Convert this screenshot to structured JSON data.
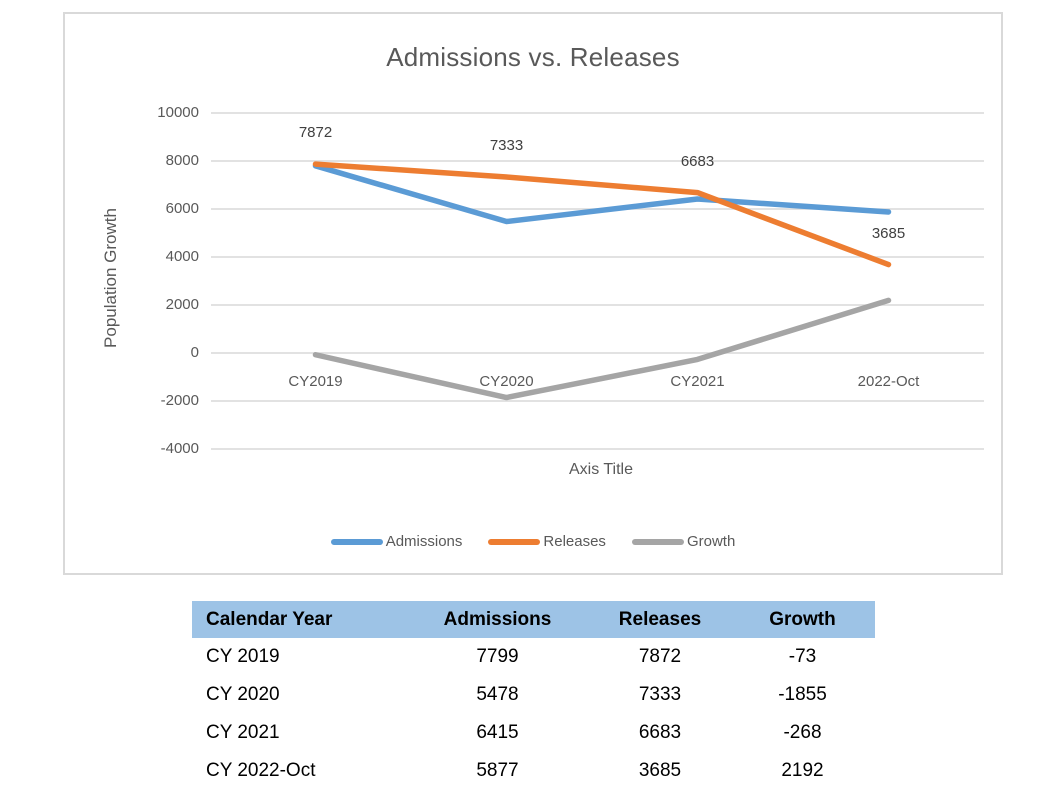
{
  "colors": {
    "admissions": "#5B9BD5",
    "releases": "#ED7D31",
    "growth": "#A5A5A5",
    "gridline": "#D9D9D9",
    "axis_text": "#595959",
    "data_label": "#404040",
    "table_header_bg": "#9DC3E6",
    "chart_border": "#D9D9D9"
  },
  "chart_data": {
    "type": "line",
    "title": "Admissions vs. Releases",
    "x_axis_title": "Axis Title",
    "y_axis_title": "Population Growth",
    "categories": [
      "CY2019",
      "CY2020",
      "CY2021",
      "2022-Oct"
    ],
    "series": [
      {
        "name": "Admissions",
        "color_key": "admissions",
        "values": [
          7799,
          5478,
          6415,
          5877
        ],
        "data_labels": false
      },
      {
        "name": "Releases",
        "color_key": "releases",
        "values": [
          7872,
          7333,
          6683,
          3685
        ],
        "data_labels": true
      },
      {
        "name": "Growth",
        "color_key": "growth",
        "values": [
          -73,
          -1855,
          -268,
          2192
        ],
        "data_labels": false
      }
    ],
    "y_ticks": [
      10000,
      8000,
      6000,
      4000,
      2000,
      0,
      -2000,
      -4000
    ],
    "ylim": [
      -4000,
      10000
    ],
    "grid": true,
    "legend_position": "bottom"
  },
  "table": {
    "columns": [
      "Calendar Year",
      "Admissions",
      "Releases",
      "Growth"
    ],
    "rows": [
      [
        "CY 2019",
        "7799",
        "7872",
        "-73"
      ],
      [
        "CY 2020",
        "5478",
        "7333",
        "-1855"
      ],
      [
        "CY 2021",
        "6415",
        "6683",
        "-268"
      ],
      [
        "CY 2022-Oct",
        "5877",
        "3685",
        "2192"
      ]
    ]
  }
}
